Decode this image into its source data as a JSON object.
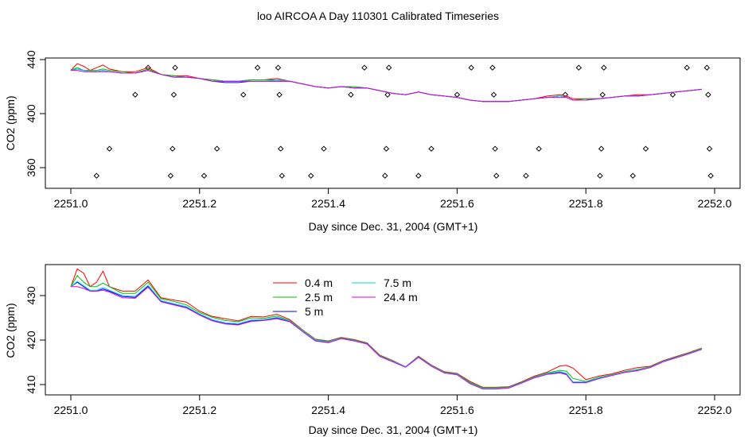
{
  "title": "loo AIRCOA A  Day 110301  Calibrated Timeseries",
  "chart_data": [
    {
      "type": "line",
      "xlabel": "Day since Dec. 31, 2004 (GMT+1)",
      "ylabel": "CO2 (ppm)",
      "xlim": [
        2251.0,
        2252.0
      ],
      "ylim": [
        350,
        440
      ],
      "xticks": [
        "2251.0",
        "2251.2",
        "2251.4",
        "2251.6",
        "2251.8",
        "2252.0"
      ],
      "yticks": [
        "440",
        "400",
        "360"
      ],
      "xtick_values": [
        2251.0,
        2251.2,
        2251.4,
        2251.6,
        2251.8,
        2252.0
      ],
      "ytick_values": [
        440,
        400,
        360
      ],
      "x": [
        2251.0,
        2251.01,
        2251.02,
        2251.03,
        2251.04,
        2251.05,
        2251.06,
        2251.08,
        2251.1,
        2251.12,
        2251.14,
        2251.16,
        2251.18,
        2251.2,
        2251.22,
        2251.24,
        2251.26,
        2251.28,
        2251.3,
        2251.32,
        2251.34,
        2251.36,
        2251.38,
        2251.4,
        2251.42,
        2251.44,
        2251.46,
        2251.48,
        2251.5,
        2251.52,
        2251.54,
        2251.56,
        2251.58,
        2251.6,
        2251.62,
        2251.64,
        2251.66,
        2251.68,
        2251.7,
        2251.72,
        2251.74,
        2251.76,
        2251.77,
        2251.78,
        2251.8,
        2251.82,
        2251.84,
        2251.86,
        2251.88,
        2251.9,
        2251.92,
        2251.94,
        2251.96,
        2251.98
      ],
      "series": [
        {
          "color": "#ff0000",
          "values": [
            432,
            437,
            435,
            432,
            434,
            436,
            433,
            431,
            431,
            434,
            429,
            428,
            428,
            426,
            425,
            424,
            424,
            425,
            425,
            426,
            424,
            422,
            420,
            419,
            420,
            419,
            419,
            417,
            415,
            414,
            416,
            414,
            413,
            412,
            410,
            409,
            409,
            409,
            410,
            411,
            413,
            414,
            413,
            411,
            411,
            411,
            412,
            413,
            414,
            414,
            415,
            416,
            417,
            418
          ]
        },
        {
          "color": "#00c000",
          "values": [
            432,
            434,
            432,
            432,
            432,
            433,
            432,
            431,
            430,
            433,
            429,
            428,
            427,
            426,
            425,
            424,
            424,
            425,
            425,
            425,
            424,
            422,
            420,
            419,
            420,
            420,
            419,
            417,
            415,
            414,
            416,
            414,
            413,
            412,
            410,
            409,
            409,
            409,
            410,
            411,
            412,
            413,
            412,
            410,
            411,
            411,
            412,
            413,
            413,
            414,
            415,
            416,
            417,
            418
          ]
        },
        {
          "color": "#0000ff",
          "values": [
            432,
            433,
            432,
            431,
            431,
            432,
            431,
            430,
            430,
            432,
            429,
            427,
            427,
            426,
            424,
            423,
            423,
            424,
            424,
            424,
            424,
            422,
            420,
            419,
            420,
            419,
            419,
            417,
            415,
            414,
            416,
            414,
            413,
            412,
            410,
            409,
            409,
            409,
            410,
            411,
            412,
            413,
            412,
            410,
            410,
            411,
            412,
            413,
            413,
            414,
            415,
            416,
            417,
            418
          ]
        },
        {
          "color": "#00d8d8",
          "values": [
            432,
            433,
            432,
            431,
            431,
            432,
            431,
            430,
            430,
            432,
            429,
            427,
            427,
            426,
            424,
            424,
            424,
            424,
            424,
            425,
            424,
            422,
            420,
            419,
            420,
            419,
            419,
            417,
            415,
            414,
            416,
            414,
            413,
            412,
            410,
            409,
            409,
            409,
            410,
            411,
            412,
            413,
            412,
            410,
            410,
            411,
            412,
            413,
            413,
            414,
            415,
            416,
            417,
            418
          ]
        },
        {
          "color": "#e000e0",
          "values": [
            432,
            432,
            431,
            431,
            431,
            431,
            431,
            430,
            430,
            432,
            429,
            427,
            427,
            426,
            424,
            424,
            424,
            424,
            424,
            424,
            424,
            422,
            420,
            419,
            420,
            419,
            419,
            417,
            415,
            414,
            416,
            414,
            413,
            412,
            410,
            409,
            409,
            409,
            410,
            411,
            412,
            412,
            412,
            410,
            410,
            411,
            412,
            413,
            413,
            414,
            415,
            416,
            417,
            418
          ]
        }
      ],
      "points": [
        {
          "x": 2251.04,
          "y": 354
        },
        {
          "x": 2251.06,
          "y": 374
        },
        {
          "x": 2251.1,
          "y": 414
        },
        {
          "x": 2251.12,
          "y": 434
        },
        {
          "x": 2251.155,
          "y": 354
        },
        {
          "x": 2251.158,
          "y": 374
        },
        {
          "x": 2251.16,
          "y": 414
        },
        {
          "x": 2251.162,
          "y": 434
        },
        {
          "x": 2251.207,
          "y": 354
        },
        {
          "x": 2251.227,
          "y": 374
        },
        {
          "x": 2251.268,
          "y": 414
        },
        {
          "x": 2251.29,
          "y": 434
        },
        {
          "x": 2251.322,
          "y": 434
        },
        {
          "x": 2251.324,
          "y": 414
        },
        {
          "x": 2251.326,
          "y": 374
        },
        {
          "x": 2251.328,
          "y": 354
        },
        {
          "x": 2251.373,
          "y": 354
        },
        {
          "x": 2251.393,
          "y": 374
        },
        {
          "x": 2251.435,
          "y": 414
        },
        {
          "x": 2251.456,
          "y": 434
        },
        {
          "x": 2251.488,
          "y": 354
        },
        {
          "x": 2251.49,
          "y": 374
        },
        {
          "x": 2251.492,
          "y": 414
        },
        {
          "x": 2251.494,
          "y": 434
        },
        {
          "x": 2251.54,
          "y": 354
        },
        {
          "x": 2251.56,
          "y": 374
        },
        {
          "x": 2251.6,
          "y": 414
        },
        {
          "x": 2251.622,
          "y": 434
        },
        {
          "x": 2251.655,
          "y": 434
        },
        {
          "x": 2251.657,
          "y": 414
        },
        {
          "x": 2251.659,
          "y": 374
        },
        {
          "x": 2251.661,
          "y": 354
        },
        {
          "x": 2251.707,
          "y": 354
        },
        {
          "x": 2251.727,
          "y": 374
        },
        {
          "x": 2251.768,
          "y": 414
        },
        {
          "x": 2251.789,
          "y": 434
        },
        {
          "x": 2251.822,
          "y": 354
        },
        {
          "x": 2251.824,
          "y": 374
        },
        {
          "x": 2251.826,
          "y": 414
        },
        {
          "x": 2251.828,
          "y": 434
        },
        {
          "x": 2251.873,
          "y": 354
        },
        {
          "x": 2251.893,
          "y": 374
        },
        {
          "x": 2251.935,
          "y": 414
        },
        {
          "x": 2251.957,
          "y": 434
        },
        {
          "x": 2251.988,
          "y": 434
        },
        {
          "x": 2251.99,
          "y": 414
        },
        {
          "x": 2251.992,
          "y": 374
        },
        {
          "x": 2251.994,
          "y": 354
        }
      ]
    },
    {
      "type": "line",
      "xlabel": "Day since Dec. 31, 2004 (GMT+1)",
      "ylabel": "CO2 (ppm)",
      "xlim": [
        2251.0,
        2252.0
      ],
      "ylim": [
        408,
        436
      ],
      "xticks": [
        "2251.0",
        "2251.2",
        "2251.4",
        "2251.6",
        "2251.8",
        "2252.0"
      ],
      "yticks": [
        "430",
        "420",
        "410"
      ],
      "xtick_values": [
        2251.0,
        2251.2,
        2251.4,
        2251.6,
        2251.8,
        2252.0
      ],
      "ytick_values": [
        430,
        420,
        410
      ],
      "legend_position": "top-center",
      "x": [
        2251.0,
        2251.01,
        2251.02,
        2251.03,
        2251.04,
        2251.05,
        2251.06,
        2251.08,
        2251.1,
        2251.12,
        2251.14,
        2251.16,
        2251.18,
        2251.2,
        2251.22,
        2251.24,
        2251.26,
        2251.28,
        2251.3,
        2251.32,
        2251.34,
        2251.36,
        2251.38,
        2251.4,
        2251.42,
        2251.44,
        2251.46,
        2251.48,
        2251.5,
        2251.52,
        2251.54,
        2251.56,
        2251.58,
        2251.6,
        2251.62,
        2251.64,
        2251.66,
        2251.68,
        2251.7,
        2251.72,
        2251.74,
        2251.76,
        2251.77,
        2251.78,
        2251.8,
        2251.82,
        2251.84,
        2251.86,
        2251.88,
        2251.9,
        2251.92,
        2251.94,
        2251.96,
        2251.98
      ],
      "series": [
        {
          "name": "0.4 m",
          "color": "#ff0000",
          "values": [
            432,
            436,
            435,
            432,
            433,
            435.5,
            432,
            431,
            431,
            433.5,
            429.5,
            429,
            428.5,
            426.5,
            425.3,
            424.8,
            424.3,
            425.3,
            425.2,
            425.8,
            424.6,
            422.3,
            420.2,
            419.8,
            420.6,
            420.1,
            419.4,
            416.6,
            415.4,
            414,
            416.4,
            414.4,
            412.9,
            412.5,
            410.7,
            409.4,
            409.4,
            409.5,
            410.6,
            411.9,
            412.8,
            414.2,
            414.3,
            413.7,
            411.1,
            411.9,
            412.4,
            413.2,
            413.8,
            414.1,
            415.4,
            416.3,
            417.2,
            418.2
          ]
        },
        {
          "name": "2.5 m",
          "color": "#00c000",
          "values": [
            432,
            434.5,
            433,
            432,
            432,
            432.8,
            432,
            430.5,
            430.5,
            433,
            429.3,
            428.7,
            427.9,
            426.2,
            425.1,
            424.4,
            424.1,
            425.0,
            424.9,
            425.4,
            424.4,
            422.2,
            420.1,
            419.7,
            420.5,
            420.0,
            419.3,
            416.5,
            415.3,
            414,
            416.3,
            414.3,
            412.8,
            412.4,
            410.5,
            409.3,
            409.3,
            409.4,
            410.5,
            411.7,
            412.6,
            413.2,
            413.0,
            411.4,
            410.7,
            411.6,
            412.2,
            412.9,
            413.4,
            414.0,
            415.3,
            416.2,
            417.1,
            418.1
          ]
        },
        {
          "name": "5 m",
          "color": "#0000ff",
          "values": [
            432,
            433,
            432,
            431,
            431,
            431.5,
            431,
            429.8,
            429.6,
            432.1,
            428.7,
            428,
            427.3,
            425.7,
            424.4,
            423.7,
            423.5,
            424.3,
            424.5,
            425,
            424.2,
            422,
            419.9,
            419.5,
            420.4,
            419.9,
            419.2,
            416.4,
            415.2,
            414,
            416.2,
            414.2,
            412.7,
            412.3,
            410.3,
            409.1,
            409.1,
            409.3,
            410.4,
            411.6,
            412.4,
            412.8,
            412.4,
            410.5,
            410.5,
            411.4,
            412.1,
            412.8,
            413.2,
            413.9,
            415.2,
            416.1,
            417,
            418
          ]
        },
        {
          "name": "7.5 m",
          "color": "#00d8d8",
          "values": [
            432,
            433.2,
            432.2,
            431.2,
            431.2,
            431.8,
            431.2,
            430,
            429.8,
            432.3,
            428.9,
            428.2,
            427.5,
            425.9,
            424.6,
            423.9,
            423.7,
            424.5,
            424.6,
            425.1,
            424.3,
            422.1,
            420,
            419.6,
            420.4,
            419.9,
            419.2,
            416.4,
            415.2,
            414,
            416.2,
            414.2,
            412.7,
            412.3,
            410.3,
            409.1,
            409.1,
            409.3,
            410.4,
            411.6,
            412.5,
            412.9,
            412.5,
            410.6,
            410.6,
            411.5,
            412.1,
            412.8,
            413.3,
            413.9,
            415.2,
            416.1,
            417,
            418
          ]
        },
        {
          "name": "24.4 m",
          "color": "#e000e0",
          "values": [
            432,
            432,
            431.6,
            431,
            431,
            431.2,
            430.8,
            429.5,
            429.4,
            431.9,
            428.6,
            427.9,
            427.2,
            425.6,
            424.3,
            423.6,
            423.4,
            424.2,
            424.4,
            424.8,
            424.1,
            421.9,
            419.8,
            419.4,
            420.3,
            419.8,
            419.1,
            416.3,
            415.1,
            413.9,
            416.1,
            414.1,
            412.6,
            412.2,
            410.2,
            409,
            409,
            409.2,
            410.3,
            411.5,
            412.3,
            412.6,
            412.2,
            410.4,
            410.4,
            411.3,
            412,
            412.7,
            413.1,
            413.8,
            415.1,
            416,
            416.9,
            417.9
          ]
        }
      ]
    }
  ]
}
